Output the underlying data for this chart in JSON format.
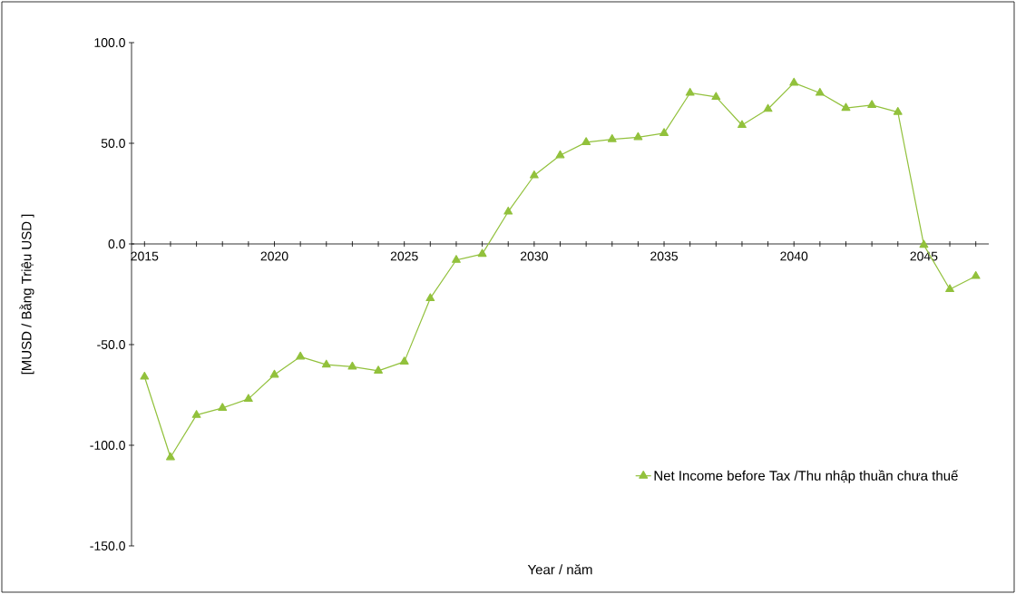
{
  "chart_data": {
    "type": "line",
    "xlabel": "Year / năm",
    "ylabel": "[MUSD / Bằng Triệu USD ]",
    "x": [
      2015,
      2016,
      2017,
      2018,
      2019,
      2020,
      2021,
      2022,
      2023,
      2024,
      2025,
      2026,
      2027,
      2028,
      2029,
      2030,
      2031,
      2032,
      2033,
      2034,
      2035,
      2036,
      2037,
      2038,
      2039,
      2040,
      2041,
      2042,
      2043,
      2044,
      2045,
      2046,
      2047
    ],
    "series": [
      {
        "name": "Net Income before Tax /Thu nhập thuần chưa thuế",
        "color": "#92c13c",
        "values": [
          -66,
          -106,
          -85,
          -81.5,
          -77,
          -65,
          -56,
          -60,
          -61,
          -63,
          -58.5,
          -27,
          -8,
          -5,
          16,
          34,
          44,
          50.5,
          52,
          53,
          55,
          75,
          73,
          59,
          67,
          80,
          75,
          67.5,
          69,
          65.5,
          -0.5,
          -22.5,
          -16
        ]
      }
    ],
    "xlim": [
      2014.5,
      2047.5
    ],
    "xticks": [
      2015,
      {
        "value": 2016,
        "label": null
      },
      {
        "value": 2017,
        "label": null
      },
      {
        "value": 2018,
        "label": null
      },
      {
        "value": 2019,
        "label": null
      },
      2020,
      {
        "value": 2021,
        "label": null
      },
      {
        "value": 2022,
        "label": null
      },
      {
        "value": 2023,
        "label": null
      },
      {
        "value": 2024,
        "label": null
      },
      2025,
      {
        "value": 2026,
        "label": null
      },
      {
        "value": 2027,
        "label": null
      },
      {
        "value": 2028,
        "label": null
      },
      {
        "value": 2029,
        "label": null
      },
      2030,
      {
        "value": 2031,
        "label": null
      },
      {
        "value": 2032,
        "label": null
      },
      {
        "value": 2033,
        "label": null
      },
      {
        "value": 2034,
        "label": null
      },
      2035,
      {
        "value": 2036,
        "label": null
      },
      {
        "value": 2037,
        "label": null
      },
      {
        "value": 2038,
        "label": null
      },
      {
        "value": 2039,
        "label": null
      },
      2040,
      {
        "value": 2041,
        "label": null
      },
      {
        "value": 2042,
        "label": null
      },
      {
        "value": 2043,
        "label": null
      },
      {
        "value": 2044,
        "label": null
      },
      2045,
      {
        "value": 2046,
        "label": null
      },
      {
        "value": 2047,
        "label": null
      }
    ],
    "ylim": [
      -150,
      100
    ],
    "yticks": [
      {
        "value": -150,
        "label": "-150.0"
      },
      {
        "value": -100,
        "label": "-100.0"
      },
      {
        "value": -50,
        "label": "-50.0"
      },
      {
        "value": 0,
        "label": "0.0"
      },
      {
        "value": 50,
        "label": "50.0"
      },
      {
        "value": 100,
        "label": "100.0"
      }
    ],
    "legend": "bottom right",
    "marker": "triangle",
    "line_style": "solid",
    "grid": false
  }
}
